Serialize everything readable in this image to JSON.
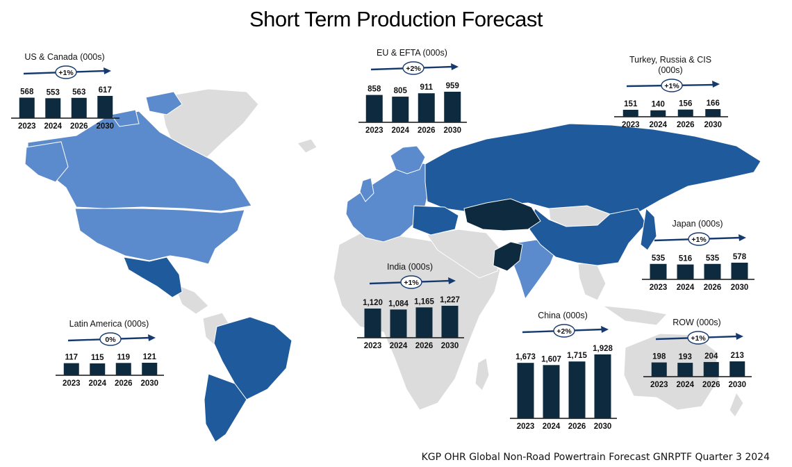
{
  "title": "Short Term Production Forecast",
  "footer": "KGP OHR Global Non-Road Powertrain Forecast GNRPTF Quarter 3 2024",
  "colors": {
    "bar": "#0d2a3e",
    "arrow": "#163a6e",
    "land_gray": "#dcdcdc",
    "region_light": "#5b8bcc",
    "region_medium": "#2f6bb0",
    "region_dark": "#1e5a9c",
    "region_darkest": "#0d2a3e"
  },
  "chart_data": [
    {
      "type": "bar",
      "title": "US & Canada (000s)",
      "growth": "+1%",
      "categories": [
        "2023",
        "2024",
        "2026",
        "2030"
      ],
      "values": [
        568,
        553,
        563,
        617
      ],
      "labels": [
        "568",
        "553",
        "563",
        "617"
      ]
    },
    {
      "type": "bar",
      "title": "EU & EFTA (000s)",
      "growth": "+2%",
      "categories": [
        "2023",
        "2024",
        "2026",
        "2030"
      ],
      "values": [
        858,
        805,
        911,
        959
      ],
      "labels": [
        "858",
        "805",
        "911",
        "959"
      ]
    },
    {
      "type": "bar",
      "title": "Turkey, Russia & CIS (000s)",
      "growth": "+1%",
      "categories": [
        "2023",
        "2024",
        "2026",
        "2030"
      ],
      "values": [
        151,
        140,
        156,
        166
      ],
      "labels": [
        "151",
        "140",
        "156",
        "166"
      ]
    },
    {
      "type": "bar",
      "title": "Japan (000s)",
      "growth": "+1%",
      "categories": [
        "2023",
        "2024",
        "2026",
        "2030"
      ],
      "values": [
        535,
        516,
        535,
        578
      ],
      "labels": [
        "535",
        "516",
        "535",
        "578"
      ]
    },
    {
      "type": "bar",
      "title": "India (000s)",
      "growth": "+1%",
      "categories": [
        "2023",
        "2024",
        "2026",
        "2030"
      ],
      "values": [
        1120,
        1084,
        1165,
        1227
      ],
      "labels": [
        "1,120",
        "1,084",
        "1,165",
        "1,227"
      ]
    },
    {
      "type": "bar",
      "title": "China (000s)",
      "growth": "+2%",
      "categories": [
        "2023",
        "2024",
        "2026",
        "2030"
      ],
      "values": [
        1673,
        1607,
        1715,
        1928
      ],
      "labels": [
        "1,673",
        "1,607",
        "1,715",
        "1,928"
      ]
    },
    {
      "type": "bar",
      "title": "Latin America (000s)",
      "growth": "0%",
      "categories": [
        "2023",
        "2024",
        "2026",
        "2030"
      ],
      "values": [
        117,
        115,
        119,
        121
      ],
      "labels": [
        "117",
        "115",
        "119",
        "121"
      ]
    },
    {
      "type": "bar",
      "title": "ROW (000s)",
      "growth": "+1%",
      "categories": [
        "2023",
        "2024",
        "2026",
        "2030"
      ],
      "values": [
        198,
        193,
        204,
        213
      ],
      "labels": [
        "198",
        "193",
        "204",
        "213"
      ]
    }
  ]
}
